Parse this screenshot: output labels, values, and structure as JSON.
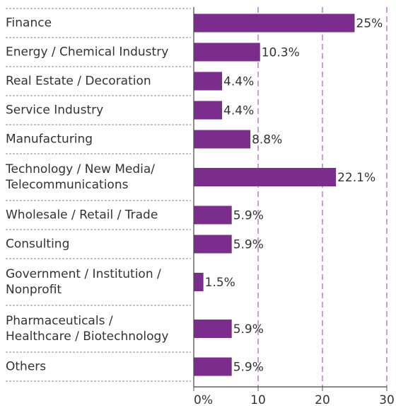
{
  "chart_data": {
    "type": "bar",
    "orientation": "horizontal",
    "categories": [
      "Finance",
      "Energy / Chemical Industry",
      "Real Estate / Decoration",
      "Service Industry",
      "Manufacturing",
      "Technology / New Media/\nTelecommunications",
      "Wholesale / Retail / Trade",
      "Consulting",
      "Government / Institution /\nNonprofit",
      "Pharmaceuticals /\nHealthcare / Biotechnology",
      "Others"
    ],
    "values": [
      25,
      10.3,
      4.4,
      4.4,
      8.8,
      22.1,
      5.9,
      5.9,
      1.5,
      5.9,
      5.9
    ],
    "value_labels": [
      "25%",
      "10.3%",
      "4.4%",
      "4.4%",
      "8.8%",
      "22.1%",
      "5.9%",
      "5.9%",
      "1.5%",
      "5.9%",
      "5.9%"
    ],
    "color": "#7b2d8e",
    "xlim": [
      0,
      30
    ],
    "xticks": [
      {
        "value": 0,
        "label": "0%"
      },
      10,
      20,
      30
    ],
    "grid": true
  }
}
